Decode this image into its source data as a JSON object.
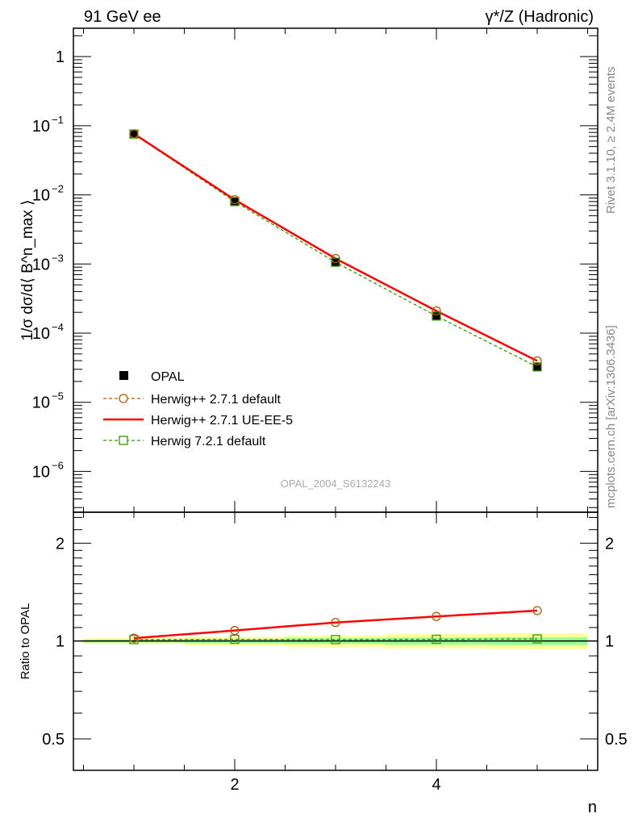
{
  "header": {
    "left": "91 GeV ee",
    "right": "γ*/Z (Hadronic)"
  },
  "side_text": {
    "top": "Rivet 3.1.10, ≥ 2.4M events",
    "bottom": "mcplots.cern.ch [arXiv:1306.3436]"
  },
  "watermark": "OPAL_2004_S6132243",
  "chart_data": [
    {
      "type": "line",
      "title": "",
      "ylabel": "1/σ dσ/d⟨ B^n_max ⟩",
      "yscale": "log",
      "ylim": [
        2.57e-07,
        2.57
      ],
      "xlim": [
        0.4,
        5.6
      ],
      "yticks": [
        {
          "v": 1,
          "label": "1"
        },
        {
          "v": 0.1,
          "label": "10",
          "exp": "−1"
        },
        {
          "v": 0.01,
          "label": "10",
          "exp": "−2"
        },
        {
          "v": 0.001,
          "label": "10",
          "exp": "−3"
        },
        {
          "v": 0.0001,
          "label": "10",
          "exp": "−4"
        },
        {
          "v": 1e-05,
          "label": "10",
          "exp": "−5"
        },
        {
          "v": 1e-06,
          "label": "10",
          "exp": "−6"
        }
      ],
      "x": [
        1,
        2,
        3,
        4,
        5
      ],
      "legend_position": "bottom-left",
      "series": [
        {
          "name": "OPAL",
          "color": "#000000",
          "style": "marker-square-filled",
          "values": [
            0.075,
            0.0079,
            0.00105,
            0.000175,
            3.2e-05
          ]
        },
        {
          "name": "Herwig++ 2.7.1 default",
          "color": "#b35900",
          "style": "dashed-circle",
          "values": [
            0.0765,
            0.0085,
            0.0012,
            0.00021,
            3.97e-05
          ]
        },
        {
          "name": "Herwig++ 2.7.1 UE-EE-5",
          "color": "#ff0000",
          "style": "solid",
          "values": [
            0.0765,
            0.0085,
            0.0012,
            0.00021,
            3.97e-05
          ]
        },
        {
          "name": "Herwig 7.2.1 default",
          "color": "#339900",
          "style": "dashed-square",
          "values": [
            0.0757,
            0.008,
            0.00106,
            0.000177,
            3.25e-05
          ]
        }
      ]
    },
    {
      "type": "line",
      "ylabel": "Ratio to OPAL",
      "xlabel": "n",
      "yscale": "log",
      "ylim": [
        0.4,
        2.49
      ],
      "xlim": [
        0.4,
        5.6
      ],
      "yticks": [
        {
          "v": 0.5,
          "label": "0.5"
        },
        {
          "v": 1,
          "label": "1"
        },
        {
          "v": 2,
          "label": "2"
        }
      ],
      "xticks": [
        {
          "v": 2,
          "label": "2"
        },
        {
          "v": 4,
          "label": "4"
        }
      ],
      "x": [
        1,
        2,
        3,
        4,
        5
      ],
      "band_outer": [
        0.02,
        0.03,
        0.04,
        0.05,
        0.055
      ],
      "band_inner": [
        0.01,
        0.015,
        0.02,
        0.025,
        0.028
      ],
      "series": [
        {
          "name": "Herwig++ 2.7.1 default",
          "values": [
            1.02,
            1.077,
            1.14,
            1.19,
            1.24
          ]
        },
        {
          "name": "Herwig++ 2.7.1 UE-EE-5",
          "values": [
            1.02,
            1.077,
            1.14,
            1.19,
            1.24
          ]
        },
        {
          "name": "Herwig 7.2.1 default",
          "values": [
            1.01,
            1.012,
            1.01,
            1.012,
            1.015
          ]
        }
      ]
    }
  ]
}
